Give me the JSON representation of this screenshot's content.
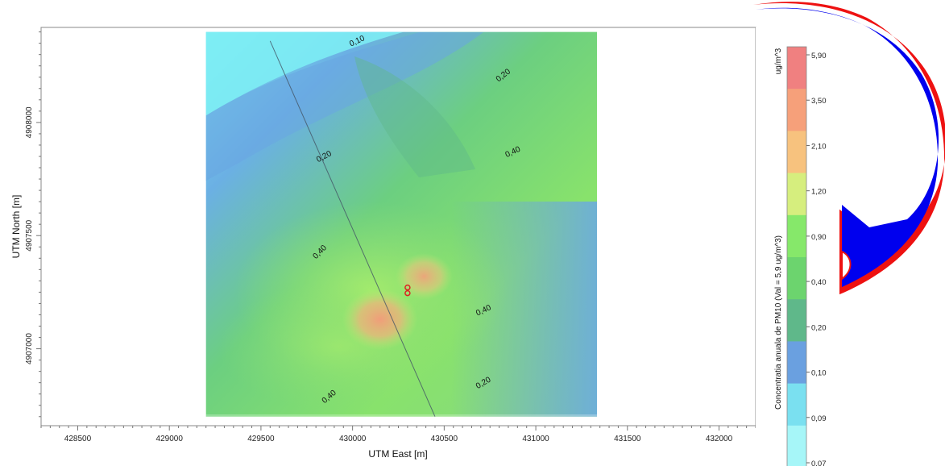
{
  "chart_data": {
    "type": "heatmap",
    "title": "",
    "xlabel": "UTM East [m]",
    "ylabel": "UTM North [m]",
    "xlim": [
      428300,
      432200
    ],
    "ylim": [
      4906660,
      4908420
    ],
    "x_ticks": [
      428500,
      429000,
      429500,
      430000,
      430500,
      431000,
      431500,
      432000
    ],
    "y_ticks": [
      4907000,
      4907500,
      4908000
    ],
    "grid": false,
    "data_extent": {
      "x": [
        429200,
        431350
      ],
      "y": [
        4906700,
        4908400
      ]
    },
    "hotspots": [
      {
        "x": 430150,
        "y": 4907130,
        "value": 5.9
      },
      {
        "x": 430390,
        "y": 4907320,
        "value": 3.5
      }
    ],
    "source": {
      "x": 430300,
      "y": 4907260
    },
    "line": [
      [
        429550,
        4908360
      ],
      [
        430450,
        4906700
      ]
    ],
    "contour_labels": [
      {
        "text": "0,10",
        "x": 430030,
        "y": 4908350,
        "angle": -25
      },
      {
        "text": "0,20",
        "x": 430830,
        "y": 4908200,
        "angle": -38
      },
      {
        "text": "0,20",
        "x": 429850,
        "y": 4907840,
        "angle": -28
      },
      {
        "text": "0,40",
        "x": 430880,
        "y": 4907860,
        "angle": -25
      },
      {
        "text": "0,40",
        "x": 429830,
        "y": 4907420,
        "angle": -45
      },
      {
        "text": "0,40",
        "x": 430720,
        "y": 4907160,
        "angle": -25
      },
      {
        "text": "0,20",
        "x": 430720,
        "y": 4906840,
        "angle": -30
      },
      {
        "text": "0,40",
        "x": 429880,
        "y": 4906780,
        "angle": -40
      }
    ],
    "colorbar": {
      "title": "Concentratia anuala de PM10 (Val = 5,9 ug/m^3)",
      "unit": "ug/m^3",
      "labels": [
        "5,90",
        "3,50",
        "2,10",
        "1,20",
        "0,90",
        "0,40",
        "0,20",
        "0,10",
        "0,09",
        "0,07"
      ],
      "colors": [
        "#f08080",
        "#f6a07a",
        "#f7c27e",
        "#d6ee7e",
        "#86e86a",
        "#6cd46e",
        "#5fb88a",
        "#6aa0e0",
        "#7ae0f0",
        "#a6f6f8"
      ]
    }
  },
  "decor": {
    "horseshoe_fill": "#0000ee",
    "horseshoe_outline": "#ee1111"
  }
}
